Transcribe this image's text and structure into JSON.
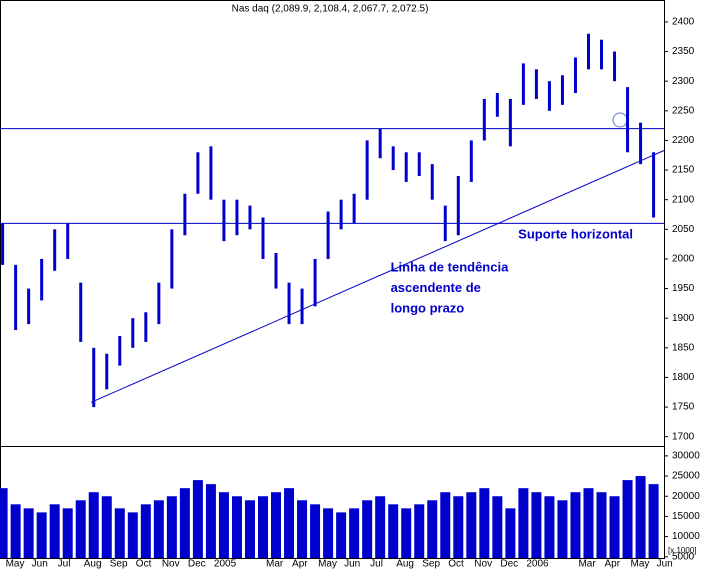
{
  "chart_data": {
    "type": "range-bar",
    "title": "Nas daq (2,089.9, 2,108.4, 2,067.7, 2,072.5)",
    "color": "#0000cc",
    "x": [
      0,
      0.5,
      1,
      1.5,
      2,
      2.5,
      3,
      3.5,
      4,
      4.5,
      5,
      5.5,
      6,
      6.5,
      7,
      7.5,
      8,
      8.5,
      9,
      9.5,
      10,
      10.5,
      11,
      11.5,
      12,
      12.5,
      13,
      13.5,
      14,
      14.5,
      15,
      15.5,
      16,
      16.5,
      17,
      17.5,
      18,
      18.5,
      19,
      19.5,
      20,
      20.5,
      21,
      21.5,
      22,
      22.5,
      23,
      23.5,
      24,
      24.5,
      25
    ],
    "high": [
      2060,
      1990,
      1950,
      2000,
      2050,
      2060,
      1960,
      1850,
      1840,
      1870,
      1900,
      1910,
      1960,
      2050,
      2110,
      2180,
      2190,
      2100,
      2100,
      2090,
      2070,
      2010,
      1960,
      1950,
      2000,
      2080,
      2100,
      2110,
      2200,
      2220,
      2190,
      2180,
      2180,
      2160,
      2090,
      2140,
      2200,
      2270,
      2280,
      2270,
      2330,
      2320,
      2300,
      2310,
      2340,
      2380,
      2370,
      2350,
      2290,
      2230,
      2180
    ],
    "low": [
      1990,
      1880,
      1890,
      1930,
      1980,
      2000,
      1860,
      1750,
      1780,
      1820,
      1850,
      1860,
      1890,
      1950,
      2040,
      2110,
      2100,
      2030,
      2040,
      2050,
      2000,
      1950,
      1890,
      1890,
      1920,
      2000,
      2050,
      2060,
      2100,
      2170,
      2150,
      2130,
      2140,
      2100,
      2030,
      2040,
      2130,
      2200,
      2240,
      2190,
      2260,
      2270,
      2250,
      2260,
      2280,
      2320,
      2320,
      2300,
      2180,
      2160,
      2070
    ],
    "volume": [
      22000,
      18000,
      17000,
      16000,
      18000,
      17000,
      19000,
      21000,
      20000,
      17000,
      16000,
      18000,
      19000,
      20000,
      22000,
      24000,
      23000,
      21000,
      20000,
      19000,
      20000,
      21000,
      22000,
      19000,
      18000,
      17000,
      16000,
      17000,
      19000,
      20000,
      18000,
      17000,
      18000,
      19000,
      21000,
      20000,
      21000,
      22000,
      20000,
      17000,
      22000,
      21000,
      20000,
      19000,
      21000,
      22000,
      21000,
      20000,
      24000,
      25000,
      23000
    ],
    "xlim": [
      -0.1,
      25.4
    ],
    "xticks": [
      {
        "value": 0,
        "label": "May"
      },
      {
        "value": 1,
        "label": "Jun"
      },
      {
        "value": 2,
        "label": "Jul"
      },
      {
        "value": 3,
        "label": "Aug"
      },
      {
        "value": 4,
        "label": "Sep"
      },
      {
        "value": 5,
        "label": "Oct"
      },
      {
        "value": 6,
        "label": "Nov"
      },
      {
        "value": 7,
        "label": "Dec"
      },
      {
        "value": 8,
        "label": "2005"
      },
      {
        "value": 10,
        "label": "Mar"
      },
      {
        "value": 11,
        "label": "Apr"
      },
      {
        "value": 12,
        "label": "May"
      },
      {
        "value": 13,
        "label": "Jun"
      },
      {
        "value": 14,
        "label": "Jul"
      },
      {
        "value": 15,
        "label": "Aug"
      },
      {
        "value": 16,
        "label": "Sep"
      },
      {
        "value": 17,
        "label": "Oct"
      },
      {
        "value": 18,
        "label": "Nov"
      },
      {
        "value": 19,
        "label": "Dec"
      },
      {
        "value": 20,
        "label": "2006"
      },
      {
        "value": 22,
        "label": "Mar"
      },
      {
        "value": 23,
        "label": "Apr"
      },
      {
        "value": 24,
        "label": "May"
      },
      {
        "value": 25,
        "label": "Jun"
      }
    ],
    "ylim": [
      1686,
      2437
    ],
    "yticks": [
      1700,
      1750,
      1800,
      1850,
      1900,
      1950,
      2000,
      2050,
      2100,
      2150,
      2200,
      2250,
      2300,
      2350,
      2400
    ],
    "y2lim": [
      4700,
      32200
    ],
    "y2ticks": [
      5000,
      10000,
      15000,
      20000,
      25000,
      30000
    ],
    "volume_unit": "[x 1000]",
    "hlines": [
      2220,
      2060
    ],
    "trendline": {
      "x": [
        3.4,
        25.4
      ],
      "y": [
        1758,
        2183
      ]
    },
    "annotations": [
      {
        "text": "Suporte horizontal",
        "x": 19.8,
        "y": 2040
      },
      {
        "text": "Linha de tendência",
        "x": 14.9,
        "y": 1985
      },
      {
        "text": "ascendente de",
        "x": 14.9,
        "y": 1950
      },
      {
        "text": "longo prazo",
        "x": 14.9,
        "y": 1915
      }
    ]
  }
}
